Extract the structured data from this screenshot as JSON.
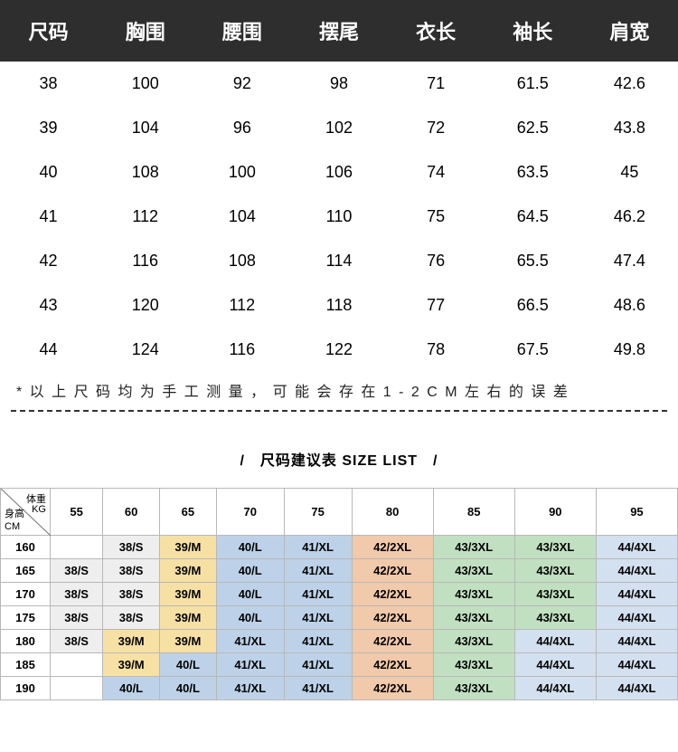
{
  "table1": {
    "headers": [
      "尺码",
      "胸围",
      "腰围",
      "摆尾",
      "衣长",
      "袖长",
      "肩宽"
    ],
    "rows": [
      [
        "38",
        "100",
        "92",
        "98",
        "71",
        "61.5",
        "42.6"
      ],
      [
        "39",
        "104",
        "96",
        "102",
        "72",
        "62.5",
        "43.8"
      ],
      [
        "40",
        "108",
        "100",
        "106",
        "74",
        "63.5",
        "45"
      ],
      [
        "41",
        "112",
        "104",
        "110",
        "75",
        "64.5",
        "46.2"
      ],
      [
        "42",
        "116",
        "108",
        "114",
        "76",
        "65.5",
        "47.4"
      ],
      [
        "43",
        "120",
        "112",
        "118",
        "77",
        "66.5",
        "48.6"
      ],
      [
        "44",
        "124",
        "116",
        "122",
        "78",
        "67.5",
        "49.8"
      ]
    ],
    "note": "* 以 上 尺 码 均 为 手 工 测 量 ， 可 能 会 存 在 1 - 2 C M 左 右 的 误 差"
  },
  "sectionTitle": "/ 尺码建议表 SIZE LIST /",
  "rec": {
    "corner": {
      "weight": "体重",
      "kg": "KG",
      "height": "身高",
      "cm": "CM"
    },
    "weights": [
      "55",
      "60",
      "65",
      "70",
      "75",
      "80",
      "85",
      "90",
      "95"
    ],
    "heights": [
      "160",
      "165",
      "170",
      "175",
      "180",
      "185",
      "190"
    ],
    "cells": [
      [
        "",
        "38/S",
        "39/M",
        "40/L",
        "41/XL",
        "42/2XL",
        "43/3XL",
        "43/3XL",
        "44/4XL"
      ],
      [
        "38/S",
        "38/S",
        "39/M",
        "40/L",
        "41/XL",
        "42/2XL",
        "43/3XL",
        "43/3XL",
        "44/4XL"
      ],
      [
        "38/S",
        "38/S",
        "39/M",
        "40/L",
        "41/XL",
        "42/2XL",
        "43/3XL",
        "43/3XL",
        "44/4XL"
      ],
      [
        "38/S",
        "38/S",
        "39/M",
        "40/L",
        "41/XL",
        "42/2XL",
        "43/3XL",
        "43/3XL",
        "44/4XL"
      ],
      [
        "38/S",
        "39/M",
        "39/M",
        "41/XL",
        "41/XL",
        "42/2XL",
        "43/3XL",
        "44/4XL",
        "44/4XL"
      ],
      [
        "",
        "39/M",
        "40/L",
        "41/XL",
        "41/XL",
        "42/2XL",
        "43/3XL",
        "44/4XL",
        "44/4XL"
      ],
      [
        "",
        "40/L",
        "40/L",
        "41/XL",
        "41/XL",
        "42/2XL",
        "43/3XL",
        "44/4XL",
        "44/4XL"
      ]
    ],
    "colorMap": {
      "38/S": "c-gray",
      "39/M": "c-yellow",
      "40/L": "c-blue",
      "41/XL": "c-blue",
      "42/2XL": "c-orange",
      "43/3XL": "c-green",
      "44/4XL": "c-bluel"
    }
  },
  "colors": {
    "headerBg": "#2e2e2e",
    "headerText": "#ffffff",
    "border": "#b8b8b8"
  }
}
